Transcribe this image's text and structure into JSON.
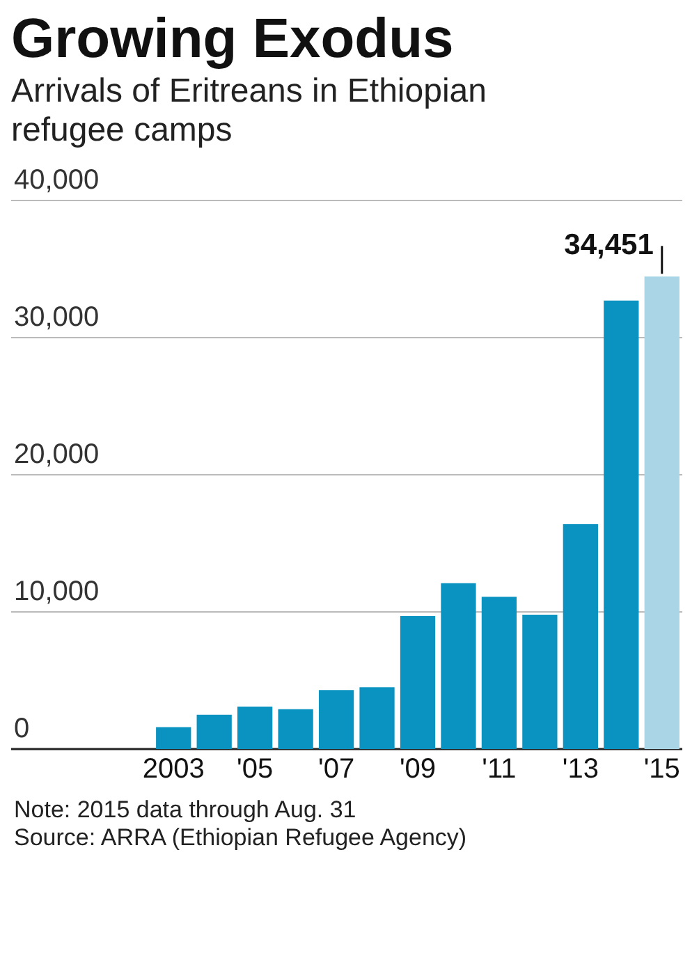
{
  "chart_data": {
    "type": "bar",
    "title": "Growing Exodus",
    "subtitle": "Arrivals of Eritreans in Ethiopian refugee camps",
    "categories": [
      "2003",
      null,
      "'05",
      null,
      "'07",
      null,
      "'09",
      null,
      "'11",
      null,
      "'13",
      null,
      "'15"
    ],
    "values": [
      1600,
      2500,
      3100,
      2900,
      4300,
      4500,
      9700,
      12100,
      11100,
      9800,
      16400,
      32700,
      34451
    ],
    "colors": [
      "#0a93c0",
      "#0a93c0",
      "#0a93c0",
      "#0a93c0",
      "#0a93c0",
      "#0a93c0",
      "#0a93c0",
      "#0a93c0",
      "#0a93c0",
      "#0a93c0",
      "#0a93c0",
      "#0a93c0",
      "#a9d5e6"
    ],
    "value_labels": [
      null,
      null,
      null,
      null,
      null,
      null,
      null,
      null,
      null,
      null,
      null,
      null,
      "34,451"
    ],
    "ylim": [
      0,
      40000
    ],
    "yticks": [
      {
        "value": 0,
        "label": "0"
      },
      {
        "value": 10000,
        "label": "10,000"
      },
      {
        "value": 20000,
        "label": "20,000"
      },
      {
        "value": 30000,
        "label": "30,000"
      },
      {
        "value": 40000,
        "label": "40,000"
      }
    ],
    "grid": "y",
    "annotations": [
      "Note: 2015 data through Aug. 31",
      "Source: ARRA (Ethiopian Refugee Agency)"
    ]
  }
}
